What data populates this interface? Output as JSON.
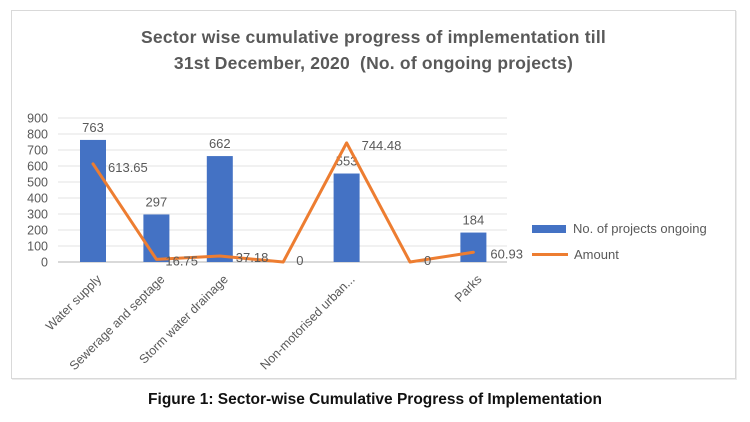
{
  "chart": {
    "title_line1": "Sector wise cumulative progress of implementation till",
    "title_line2": "31st December, 2020  (No. of ongoing projects)"
  },
  "chart_data": {
    "type": "combo-bar-line",
    "categories": [
      "Water supply",
      "Sewerage and septage",
      "Storm water drainage",
      "",
      "Non-motorised urban...",
      "",
      "Parks"
    ],
    "series": [
      {
        "name": "No. of projects ongoing",
        "type": "bar",
        "color": "#4472C4",
        "values": [
          763,
          297,
          662,
          0,
          553,
          0,
          184
        ],
        "data_labels": [
          "763",
          "297",
          "662",
          "",
          "553",
          "",
          "184"
        ]
      },
      {
        "name": "Amount",
        "type": "line",
        "color": "#ED7D31",
        "values": [
          613.65,
          16.75,
          37.18,
          0,
          744.48,
          0,
          60.93
        ],
        "data_labels": [
          "613.65",
          "16.75",
          "37.18",
          "0",
          "744.48",
          "0",
          "60.93"
        ]
      }
    ],
    "ylim": [
      0,
      900
    ],
    "ytick_step": 100,
    "ytick_labels": [
      "0",
      "100",
      "200",
      "300",
      "400",
      "500",
      "600",
      "700",
      "800",
      "900"
    ],
    "grid": true,
    "legend_position": "right"
  },
  "caption": "Figure 1: Sector-wise Cumulative Progress of Implementation",
  "colors": {
    "bar": "#4472C4",
    "line": "#ED7D31",
    "gridline": "#e3e3e3",
    "axis_line": "#b3b3b3",
    "chart_border": "#d9d9d9",
    "text": "#595959"
  }
}
